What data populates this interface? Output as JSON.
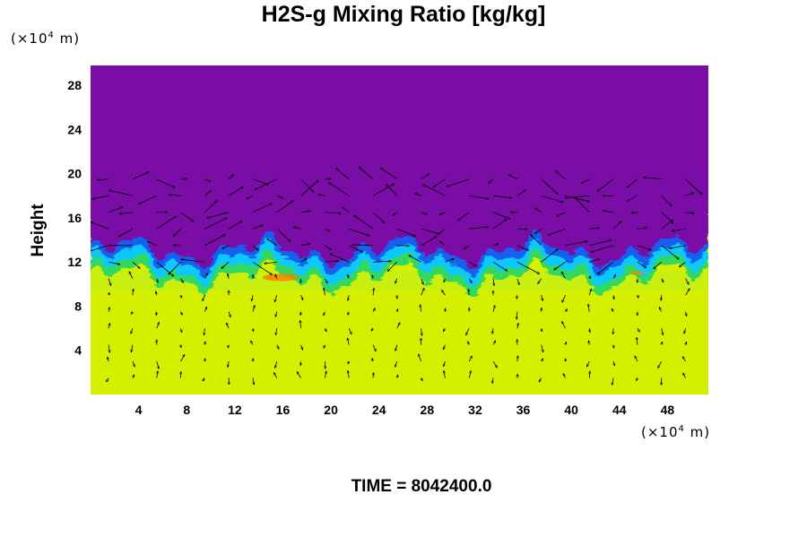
{
  "chart_data": {
    "type": "heatmap",
    "title": "H2S-g Mixing Ratio [kg/kg]",
    "ylabel": "Height",
    "x_unit": {
      "prefix": "(×10",
      "exp": "4",
      "suffix": " m)"
    },
    "y_unit": {
      "prefix": "(×10",
      "exp": "4",
      "suffix": " m)"
    },
    "xlim": [
      0,
      51.4
    ],
    "ylim": [
      0,
      29.8
    ],
    "xticks": [
      4,
      8,
      12,
      16,
      20,
      24,
      28,
      32,
      36,
      40,
      44,
      48
    ],
    "yticks": [
      4,
      8,
      12,
      16,
      20,
      24,
      28
    ],
    "interface_height_approx": 12,
    "colors": {
      "upper": "#7a0aa6",
      "lower": "#d4f000",
      "lower_light": "#c8ee10",
      "band_blue": "#1860f0",
      "band_cyan": "#10c8ff",
      "band_green": "#30d860",
      "hotspot": "#ff8000"
    },
    "vectors": true
  },
  "footer": {
    "time_label": "TIME = 8042400.0"
  }
}
